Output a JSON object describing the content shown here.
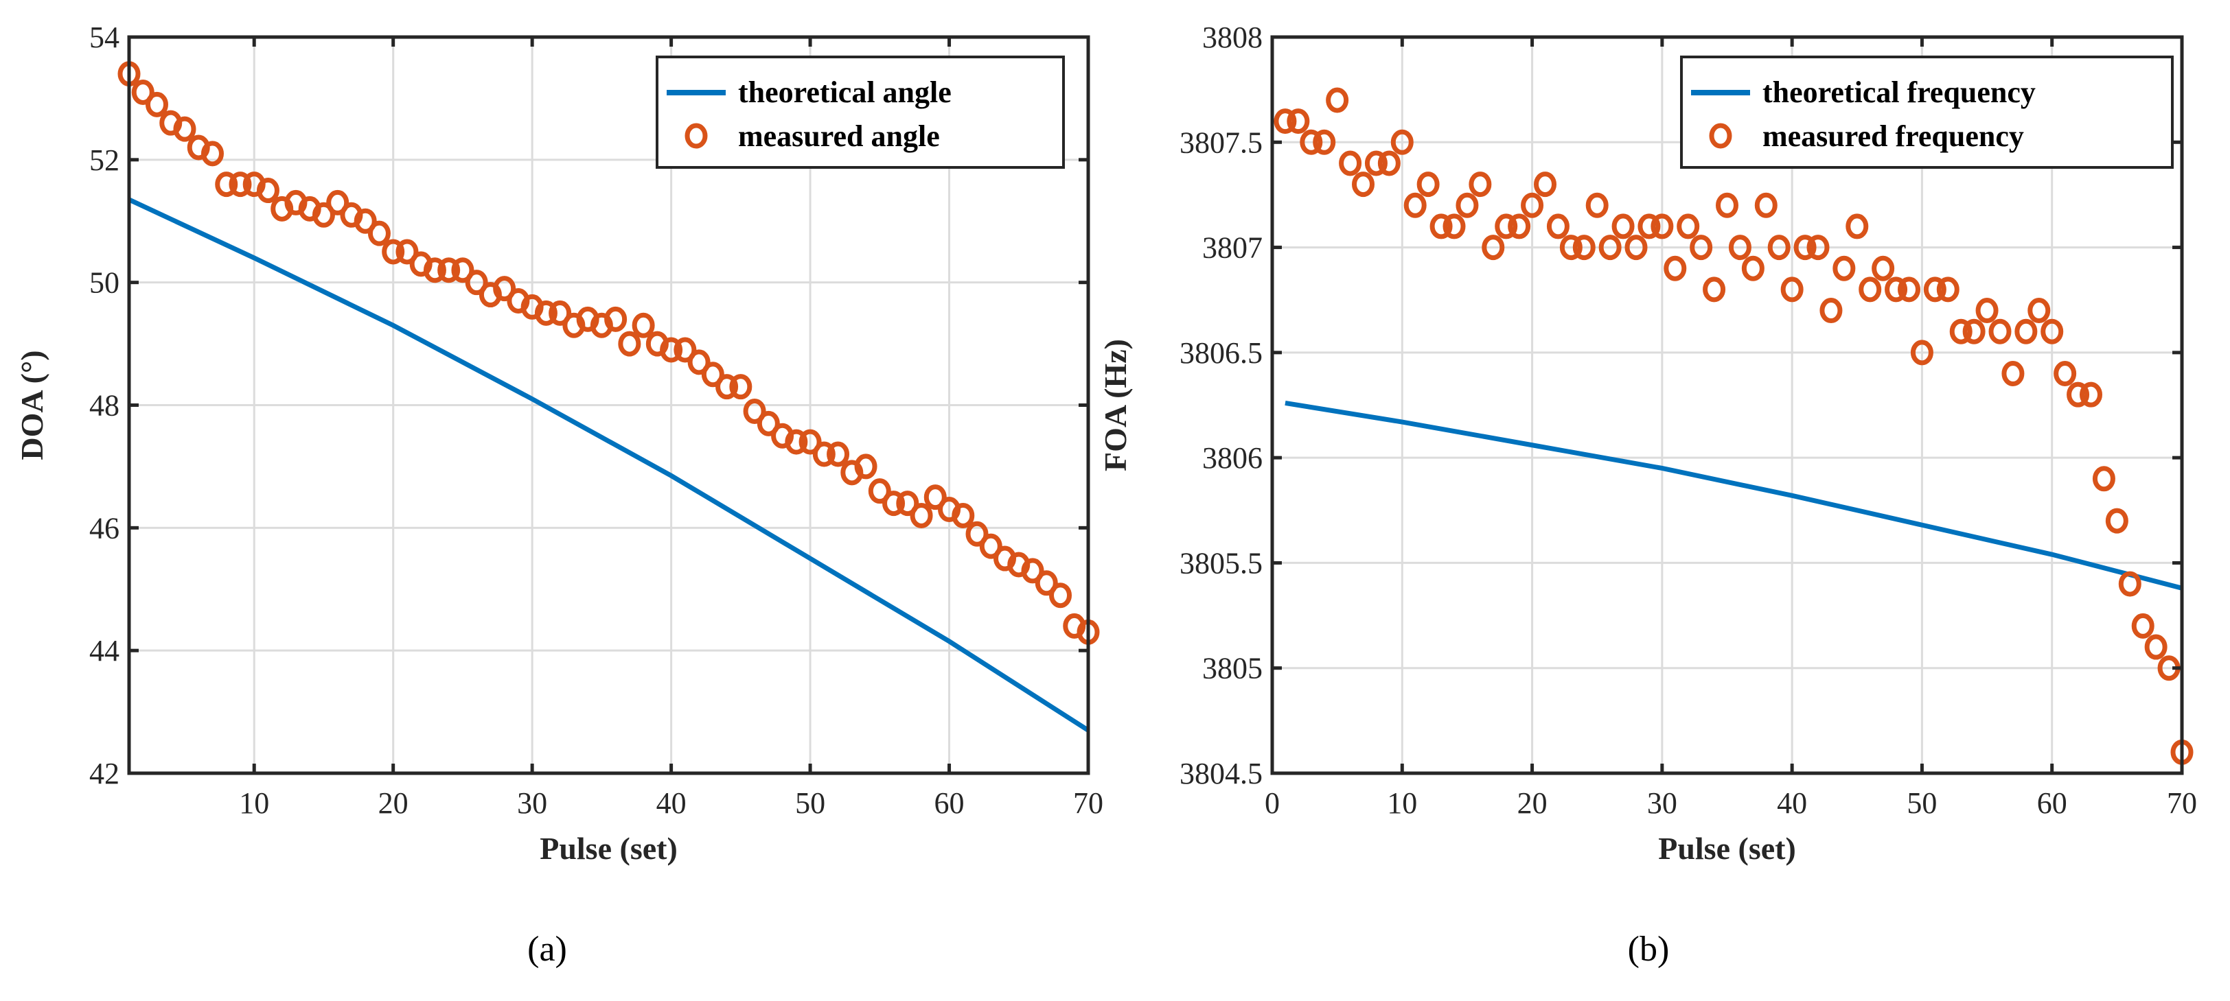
{
  "colors": {
    "theory": "#0072BD",
    "measured": "#D95319",
    "grid": "#dcdcdc",
    "axis": "#262626"
  },
  "chart_data": [
    {
      "type": "line",
      "caption": "(a)",
      "xlabel": "Pulse (set)",
      "ylabel": "DOA (°)",
      "xlim": [
        1,
        70
      ],
      "ylim": [
        42,
        54
      ],
      "xticks": [
        10,
        20,
        30,
        40,
        50,
        60,
        70
      ],
      "yticks": [
        42,
        44,
        46,
        48,
        50,
        52,
        54
      ],
      "grid": true,
      "legend_position": "top-right",
      "series": [
        {
          "name": "theoretical angle",
          "style": "line",
          "x": [
            1,
            10,
            20,
            30,
            40,
            50,
            60,
            70
          ],
          "y": [
            51.35,
            50.4,
            49.3,
            48.1,
            46.85,
            45.5,
            44.15,
            42.7
          ]
        },
        {
          "name": "measured angle",
          "style": "marker",
          "x": [
            1,
            2,
            3,
            4,
            5,
            6,
            7,
            8,
            9,
            10,
            11,
            12,
            13,
            14,
            15,
            16,
            17,
            18,
            19,
            20,
            21,
            22,
            23,
            24,
            25,
            26,
            27,
            28,
            29,
            30,
            31,
            32,
            33,
            34,
            35,
            36,
            37,
            38,
            39,
            40,
            41,
            42,
            43,
            44,
            45,
            46,
            47,
            48,
            49,
            50,
            51,
            52,
            53,
            54,
            55,
            56,
            57,
            58,
            59,
            60,
            61,
            62,
            63,
            64,
            65,
            66,
            67,
            68,
            69,
            70
          ],
          "y": [
            53.4,
            53.1,
            52.9,
            52.6,
            52.5,
            52.2,
            52.1,
            51.6,
            51.6,
            51.6,
            51.5,
            51.2,
            51.3,
            51.2,
            51.1,
            51.3,
            51.1,
            51.0,
            50.8,
            50.5,
            50.5,
            50.3,
            50.2,
            50.2,
            50.2,
            50.0,
            49.8,
            49.9,
            49.7,
            49.6,
            49.5,
            49.5,
            49.3,
            49.4,
            49.3,
            49.4,
            49.0,
            49.3,
            49.0,
            48.9,
            48.9,
            48.7,
            48.5,
            48.3,
            48.3,
            47.9,
            47.7,
            47.5,
            47.4,
            47.4,
            47.2,
            47.2,
            46.9,
            47.0,
            46.6,
            46.4,
            46.4,
            46.2,
            46.5,
            46.3,
            46.2,
            45.9,
            45.7,
            45.5,
            45.4,
            45.3,
            45.1,
            44.9,
            44.4,
            44.3
          ]
        }
      ]
    },
    {
      "type": "line",
      "caption": "(b)",
      "xlabel": "Pulse (set)",
      "ylabel": "FOA (Hz)",
      "xlim": [
        0,
        70
      ],
      "ylim": [
        3804.5,
        3808
      ],
      "xticks": [
        0,
        10,
        20,
        30,
        40,
        50,
        60,
        70
      ],
      "yticks": [
        3804.5,
        3805,
        3805.5,
        3806,
        3806.5,
        3807,
        3807.5,
        3808
      ],
      "grid": true,
      "legend_position": "top-right",
      "series": [
        {
          "name": "theoretical frequency",
          "style": "line",
          "x": [
            1,
            10,
            20,
            30,
            40,
            50,
            60,
            70
          ],
          "y": [
            3806.26,
            3806.17,
            3806.06,
            3805.95,
            3805.82,
            3805.68,
            3805.54,
            3805.38
          ]
        },
        {
          "name": "measured frequency",
          "style": "marker",
          "x": [
            1,
            2,
            3,
            4,
            5,
            6,
            7,
            8,
            9,
            10,
            11,
            12,
            13,
            14,
            15,
            16,
            17,
            18,
            19,
            20,
            21,
            22,
            23,
            24,
            25,
            26,
            27,
            28,
            29,
            30,
            31,
            32,
            33,
            34,
            35,
            36,
            37,
            38,
            39,
            40,
            41,
            42,
            43,
            44,
            45,
            46,
            47,
            48,
            49,
            50,
            51,
            52,
            53,
            54,
            55,
            56,
            57,
            58,
            59,
            60,
            61,
            62,
            63,
            64,
            65,
            66,
            67,
            68,
            69,
            70
          ],
          "y": [
            3807.6,
            3807.6,
            3807.5,
            3807.5,
            3807.7,
            3807.4,
            3807.3,
            3807.4,
            3807.4,
            3807.5,
            3807.2,
            3807.3,
            3807.1,
            3807.1,
            3807.2,
            3807.3,
            3807.0,
            3807.1,
            3807.1,
            3807.2,
            3807.3,
            3807.1,
            3807.0,
            3807.0,
            3807.2,
            3807.0,
            3807.1,
            3807.0,
            3807.1,
            3807.1,
            3806.9,
            3807.1,
            3807.0,
            3806.8,
            3807.2,
            3807.0,
            3806.9,
            3807.2,
            3807.0,
            3806.8,
            3807.0,
            3807.0,
            3806.7,
            3806.9,
            3807.1,
            3806.8,
            3806.9,
            3806.8,
            3806.8,
            3806.5,
            3806.8,
            3806.8,
            3806.6,
            3806.6,
            3806.7,
            3806.6,
            3806.4,
            3806.6,
            3806.7,
            3806.6,
            3806.4,
            3806.3,
            3806.3,
            3805.9,
            3805.7,
            3805.4,
            3805.2,
            3805.1,
            3805.0,
            3804.6
          ]
        }
      ]
    }
  ]
}
